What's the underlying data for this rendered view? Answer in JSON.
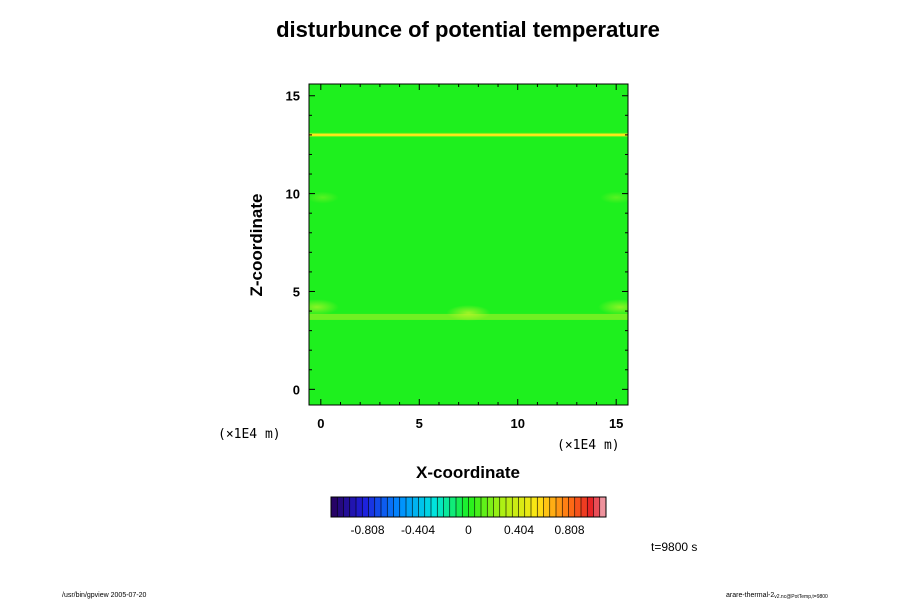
{
  "chart_data": {
    "type": "heatmap",
    "title": "disturbunce of potential temperature",
    "xlabel": "X-coordinate",
    "ylabel": "Z-coordinate",
    "x_unit": "(×1E4 m)",
    "y_unit": "(×1E4 m)",
    "xlim": [
      -0.6,
      15.6
    ],
    "ylim": [
      -0.8,
      15.6
    ],
    "x_ticks": [
      0,
      5,
      10,
      15
    ],
    "y_ticks": [
      0,
      5,
      10,
      15
    ],
    "x_tick_labels": [
      "0",
      "5",
      "10",
      "15"
    ],
    "y_tick_labels": [
      "0",
      "5",
      "10",
      "15"
    ],
    "background_value": 0.0,
    "features": [
      {
        "kind": "horizontal_band",
        "z": 13.0,
        "value": 0.45
      },
      {
        "kind": "horizontal_band",
        "z": 3.7,
        "value": 0.12
      },
      {
        "kind": "blob",
        "x": 7.5,
        "z": 3.9,
        "value": 0.18
      },
      {
        "kind": "blob",
        "x": 15.2,
        "z": 4.2,
        "value": 0.15
      },
      {
        "kind": "blob",
        "x": -0.2,
        "z": 4.2,
        "value": 0.15
      },
      {
        "kind": "blob",
        "x": 0.1,
        "z": 9.8,
        "value": 0.08
      },
      {
        "kind": "blob",
        "x": 15.0,
        "z": 9.8,
        "value": 0.08
      }
    ],
    "colorbar": {
      "ticks": [
        -0.808,
        -0.404,
        0,
        0.404,
        0.808
      ],
      "tick_labels": [
        "-0.808",
        "-0.404",
        "0",
        "0.404",
        "0.808"
      ],
      "range": [
        -1.1,
        1.1
      ],
      "levels": 44
    },
    "colors": {
      "background_field": "#1ef01e",
      "band": "#ffe61a"
    }
  },
  "annotations": {
    "time": "t=9800 s",
    "footer_left": "/usr/bin/gpview 2005-07-20",
    "footer_right_main": "arare-thermal-2",
    "footer_right_sub": "v2.nc@PotTemp,t=9800"
  }
}
